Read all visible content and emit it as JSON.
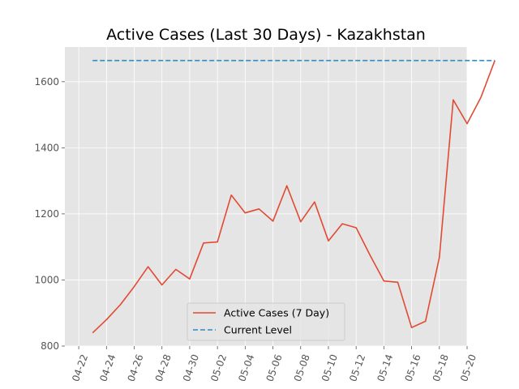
{
  "chart_data": {
    "type": "line",
    "title": "Active Cases (Last 30 Days) - Kazakhstan",
    "xlabel": "",
    "ylabel": "",
    "x_ticks": [
      "04-22",
      "04-24",
      "04-26",
      "04-28",
      "04-30",
      "05-02",
      "05-04",
      "05-06",
      "05-08",
      "05-10",
      "05-12",
      "05-14",
      "05-16",
      "05-18",
      "05-20"
    ],
    "y_ticks": [
      800,
      1000,
      1200,
      1400,
      1600
    ],
    "xlim": [
      "2021-04-21",
      "2021-05-20"
    ],
    "ylim": [
      800,
      1705
    ],
    "grid": true,
    "legend_position": "bottom-center",
    "series": [
      {
        "name": "Active Cases (7 Day)",
        "color": "#e24a33",
        "style": "solid",
        "x": [
          "2021-04-23",
          "2021-04-24",
          "2021-04-25",
          "2021-04-26",
          "2021-04-27",
          "2021-04-28",
          "2021-04-29",
          "2021-04-30",
          "2021-05-01",
          "2021-05-02",
          "2021-05-03",
          "2021-05-04",
          "2021-05-05",
          "2021-05-06",
          "2021-05-07",
          "2021-05-08",
          "2021-05-09",
          "2021-05-10",
          "2021-05-11",
          "2021-05-12",
          "2021-05-13",
          "2021-05-14",
          "2021-05-15",
          "2021-05-16",
          "2021-05-17",
          "2021-05-18",
          "2021-05-19",
          "2021-05-20",
          "2021-05-21",
          "2021-05-22"
        ],
        "values": [
          840,
          880,
          925,
          980,
          1040,
          985,
          1032,
          1003,
          1112,
          1115,
          1257,
          1203,
          1215,
          1178,
          1285,
          1176,
          1236,
          1118,
          1170,
          1158,
          1075,
          997,
          993,
          856,
          875,
          1068,
          1545,
          1473,
          1553,
          1664
        ]
      },
      {
        "name": "Current Level",
        "color": "#348abd",
        "style": "dashed",
        "x": [
          "2021-04-23",
          "2021-05-22"
        ],
        "values": [
          1664,
          1664
        ]
      }
    ]
  }
}
